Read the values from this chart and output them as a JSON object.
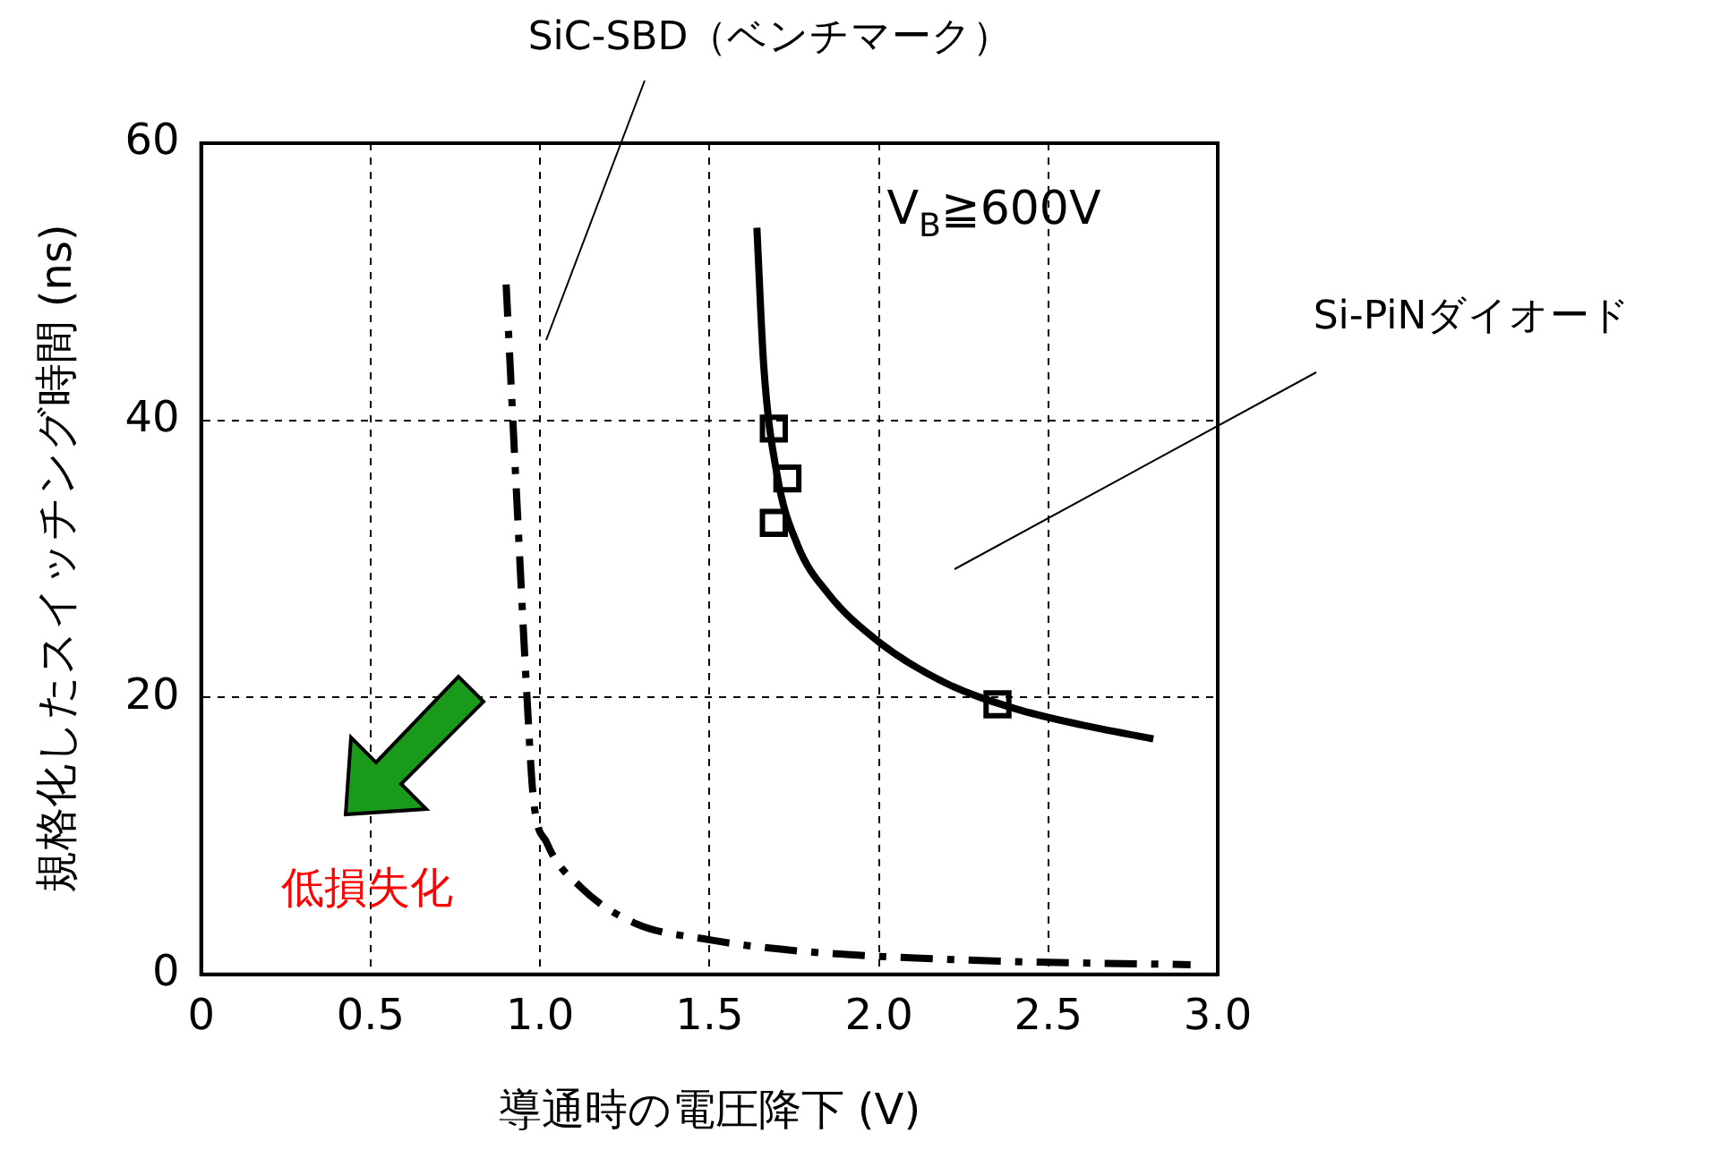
{
  "chart_data": {
    "type": "line",
    "xlabel": "導通時の電圧降下 (V)",
    "ylabel": "規格化したスイッチング時間 (ns)",
    "xlim": [
      0,
      3
    ],
    "xticks": [
      0,
      {
        "value": 0.5,
        "label": "0.5"
      },
      {
        "value": 1,
        "label": "1.0"
      },
      {
        "value": 1.5,
        "label": "1.5"
      },
      {
        "value": 2,
        "label": "2.0"
      },
      {
        "value": 2.5,
        "label": "2.5"
      },
      {
        "value": 3,
        "label": "3.0"
      }
    ],
    "ylim": [
      0,
      60
    ],
    "yticks": [
      0,
      20,
      40,
      60
    ],
    "grid": true,
    "legend": false,
    "series": [
      {
        "color": "#000000",
        "marker": "none",
        "line_style": "solid",
        "x": [
          1.64,
          1.66,
          1.7,
          1.76,
          1.85,
          2.0,
          2.2,
          2.4,
          2.6,
          2.81
        ],
        "values": [
          53.9,
          44,
          36,
          31,
          27.5,
          24,
          21,
          19.2,
          18,
          17
        ]
      },
      {
        "color": "#000000",
        "marker": "none",
        "line_style": "dashed",
        "x": [
          0.9,
          0.93,
          0.96,
          0.98,
          1.02,
          1.12,
          1.28,
          1.5,
          1.76,
          2.3,
          2.92
        ],
        "values": [
          49.8,
          35,
          20.7,
          12.8,
          9.5,
          6.3,
          3.7,
          2.5,
          1.7,
          1.0,
          0.7
        ]
      },
      {
        "type": "scatter",
        "color": "#000000",
        "marker": "square",
        "x": [
          1.69,
          1.73,
          1.69,
          2.35
        ],
        "values": [
          39.4,
          35.8,
          32.6,
          19.5
        ]
      }
    ],
    "annotations": [
      "SiC-SBD（ベンチマーク）",
      "Si-PiNダイオード",
      "V$_{B}$≧600V",
      "低損失化"
    ]
  }
}
